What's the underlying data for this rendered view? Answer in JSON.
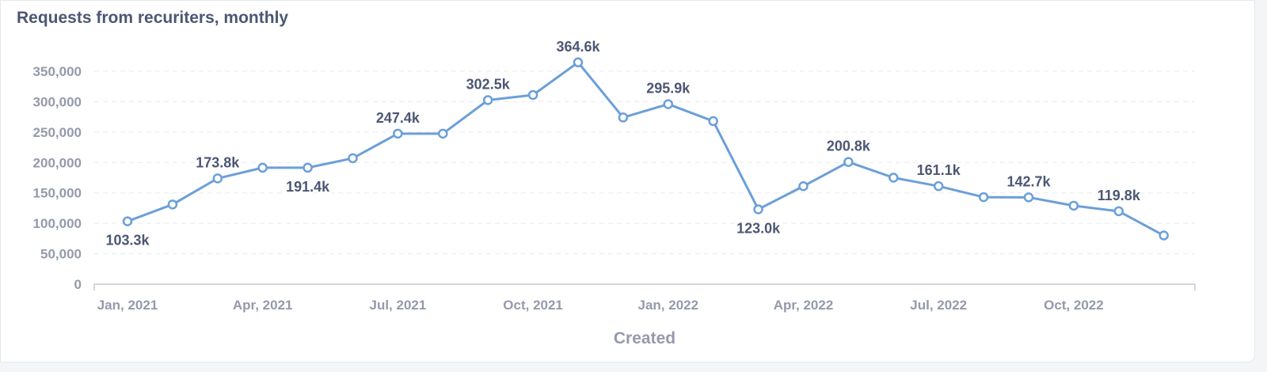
{
  "chart_data": {
    "type": "line",
    "title": "Requests from recuriters, monthly",
    "xlabel": "Created",
    "ylabel": "",
    "ylim": [
      0,
      350000
    ],
    "yticks": [
      "0",
      "50,000",
      "100,000",
      "150,000",
      "200,000",
      "250,000",
      "300,000",
      "350,000"
    ],
    "ytick_values": [
      0,
      50000,
      100000,
      150000,
      200000,
      250000,
      300000,
      350000
    ],
    "xtick_labels": [
      "Jan, 2021",
      "Apr, 2021",
      "Jul, 2021",
      "Oct, 2021",
      "Jan, 2022",
      "Apr, 2022",
      "Jul, 2022",
      "Oct, 2022"
    ],
    "xtick_index": [
      0,
      3,
      6,
      9,
      12,
      15,
      18,
      21
    ],
    "x": [
      "Jan, 2021",
      "Feb, 2021",
      "Mar, 2021",
      "Apr, 2021",
      "May, 2021",
      "Jun, 2021",
      "Jul, 2021",
      "Aug, 2021",
      "Sep, 2021",
      "Oct, 2021",
      "Nov, 2021",
      "Dec, 2021",
      "Jan, 2022",
      "Feb, 2022",
      "Mar, 2022",
      "Apr, 2022",
      "May, 2022",
      "Jun, 2022",
      "Jul, 2022",
      "Aug, 2022",
      "Sep, 2022",
      "Oct, 2022",
      "Nov, 2022",
      "Dec, 2022"
    ],
    "series": [
      {
        "values": [
          103300,
          131000,
          173800,
          191400,
          191400,
          207000,
          247400,
          247400,
          302500,
          311000,
          364600,
          274000,
          295900,
          268000,
          123000,
          161000,
          200800,
          175000,
          161100,
          143000,
          142700,
          129000,
          119800,
          80000
        ],
        "color": "#6b9fd8"
      }
    ],
    "data_labels": [
      {
        "index": 0,
        "text": "103.3k",
        "position": "below"
      },
      {
        "index": 2,
        "text": "173.8k",
        "position": "above"
      },
      {
        "index": 4,
        "text": "191.4k",
        "position": "below"
      },
      {
        "index": 6,
        "text": "247.4k",
        "position": "above"
      },
      {
        "index": 8,
        "text": "302.5k",
        "position": "above"
      },
      {
        "index": 10,
        "text": "364.6k",
        "position": "above"
      },
      {
        "index": 12,
        "text": "295.9k",
        "position": "above"
      },
      {
        "index": 14,
        "text": "123.0k",
        "position": "below"
      },
      {
        "index": 16,
        "text": "200.8k",
        "position": "above"
      },
      {
        "index": 18,
        "text": "161.1k",
        "position": "above"
      },
      {
        "index": 20,
        "text": "142.7k",
        "position": "above"
      },
      {
        "index": 22,
        "text": "119.8k",
        "position": "above"
      }
    ],
    "grid": true,
    "colors": {
      "line": "#6b9fd8",
      "grid": "#e8eaee",
      "axis": "#c5c9d3",
      "label": "#4c5773",
      "tick": "#949aab"
    }
  }
}
